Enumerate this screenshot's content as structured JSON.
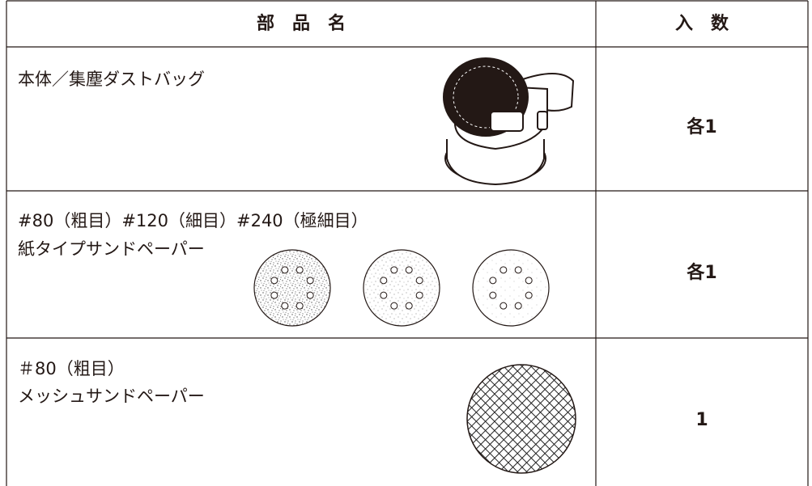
{
  "header": {
    "name": "部　品　名",
    "quantity": "入　数"
  },
  "rows": [
    {
      "name": [
        "本体／集塵ダストバッグ"
      ],
      "quantity": "各1"
    },
    {
      "name": [
        "#80（粗目）#120（細目）#240（極細目）",
        "紙タイプサンドペーパー"
      ],
      "quantity": "各1"
    },
    {
      "name": [
        "＃80（粗目）",
        "メッシュサンドペーパー"
      ],
      "quantity": "1"
    }
  ]
}
